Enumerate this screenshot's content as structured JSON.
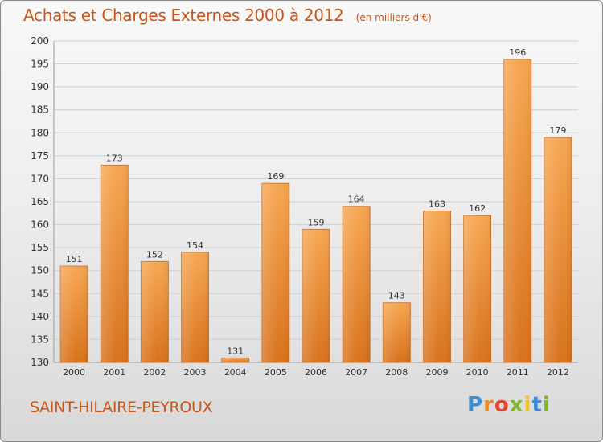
{
  "header": {
    "title": "Achats et Charges Externes 2000 à 2012",
    "unit": "(en milliers d'€)"
  },
  "footer": {
    "location": "SAINT-HILAIRE-PEYROUX",
    "brand": "Proxiti"
  },
  "colors": {
    "title": "#c8561a",
    "bar_light": "#f7a450",
    "bar_dark": "#d9741e",
    "grid": "#c8c8c8"
  },
  "chart_data": {
    "type": "bar",
    "title": "Achats et Charges Externes 2000 à 2012",
    "subtitle": "(en milliers d'€)",
    "categories": [
      "2000",
      "2001",
      "2002",
      "2003",
      "2004",
      "2005",
      "2006",
      "2007",
      "2008",
      "2009",
      "2010",
      "2011",
      "2012"
    ],
    "values": [
      151,
      173,
      152,
      154,
      131,
      169,
      159,
      164,
      143,
      163,
      162,
      196,
      179
    ],
    "ylim": [
      130,
      200
    ],
    "yticks": [
      130,
      135,
      140,
      145,
      150,
      155,
      160,
      165,
      170,
      175,
      180,
      185,
      190,
      195,
      200
    ],
    "grid": true,
    "data_labels": true
  }
}
